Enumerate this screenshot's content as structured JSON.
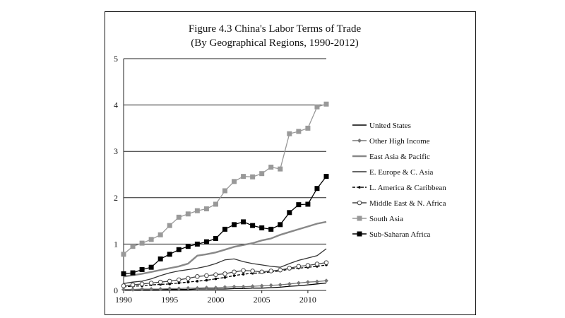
{
  "chart_data": {
    "type": "line",
    "title": "Figure 4.3 China's Labor Terms of Trade",
    "subtitle": "(By Geographical Regions, 1990-2012)",
    "xlabel": "",
    "ylabel": "",
    "xlim": [
      1990,
      2012
    ],
    "ylim": [
      0,
      5
    ],
    "x_ticks": [
      1990,
      1995,
      2000,
      2005,
      2010
    ],
    "y_ticks": [
      0,
      1,
      2,
      3,
      4,
      5
    ],
    "grid": "horizontal",
    "legend_position": "right",
    "x": [
      1990,
      1991,
      1992,
      1993,
      1994,
      1995,
      1996,
      1997,
      1998,
      1999,
      2000,
      2001,
      2002,
      2003,
      2004,
      2005,
      2006,
      2007,
      2008,
      2009,
      2010,
      2011,
      2012
    ],
    "series": [
      {
        "name": "United States",
        "color": "#000000",
        "marker": "none",
        "values": [
          0.01,
          0.01,
          0.01,
          0.01,
          0.02,
          0.02,
          0.02,
          0.02,
          0.03,
          0.03,
          0.03,
          0.03,
          0.04,
          0.04,
          0.05,
          0.05,
          0.06,
          0.07,
          0.09,
          0.1,
          0.12,
          0.14,
          0.16
        ]
      },
      {
        "name": "Other High Income",
        "color": "#777777",
        "marker": "diamond",
        "values": [
          0.02,
          0.02,
          0.03,
          0.03,
          0.03,
          0.04,
          0.04,
          0.05,
          0.05,
          0.06,
          0.06,
          0.07,
          0.08,
          0.08,
          0.09,
          0.1,
          0.11,
          0.12,
          0.14,
          0.16,
          0.18,
          0.19,
          0.21
        ]
      },
      {
        "name": "East Asia & Pacific",
        "color": "#888888",
        "marker": "none",
        "values": [
          0.3,
          0.33,
          0.36,
          0.4,
          0.44,
          0.48,
          0.52,
          0.58,
          0.75,
          0.78,
          0.82,
          0.88,
          0.94,
          0.98,
          1.02,
          1.08,
          1.12,
          1.2,
          1.26,
          1.32,
          1.38,
          1.44,
          1.48
        ]
      },
      {
        "name": "E. Europe & C. Asia",
        "color": "#333333",
        "marker": "none",
        "values": [
          0.15,
          0.18,
          0.2,
          0.25,
          0.32,
          0.38,
          0.42,
          0.45,
          0.48,
          0.52,
          0.58,
          0.66,
          0.68,
          0.62,
          0.58,
          0.55,
          0.52,
          0.5,
          0.58,
          0.65,
          0.7,
          0.75,
          0.9
        ]
      },
      {
        "name": "L. America & Caribbean",
        "color": "#000000",
        "marker": "dot",
        "dash": "4,2",
        "values": [
          0.08,
          0.09,
          0.1,
          0.12,
          0.13,
          0.14,
          0.16,
          0.18,
          0.2,
          0.22,
          0.25,
          0.28,
          0.32,
          0.35,
          0.37,
          0.38,
          0.4,
          0.42,
          0.46,
          0.48,
          0.5,
          0.52,
          0.55
        ]
      },
      {
        "name": "Middle East & N. Africa",
        "color": "#444444",
        "marker": "circle",
        "values": [
          0.1,
          0.12,
          0.14,
          0.16,
          0.18,
          0.2,
          0.23,
          0.26,
          0.3,
          0.32,
          0.34,
          0.36,
          0.4,
          0.43,
          0.42,
          0.4,
          0.42,
          0.44,
          0.48,
          0.52,
          0.54,
          0.57,
          0.6
        ]
      },
      {
        "name": "South Asia",
        "color": "#999999",
        "marker": "square",
        "values": [
          0.78,
          0.95,
          1.02,
          1.1,
          1.2,
          1.4,
          1.58,
          1.65,
          1.72,
          1.76,
          1.86,
          2.15,
          2.35,
          2.46,
          2.45,
          2.52,
          2.66,
          2.62,
          3.38,
          3.43,
          3.5,
          3.96,
          4.02
        ]
      },
      {
        "name": "Sub-Saharan Africa",
        "color": "#000000",
        "marker": "square",
        "values": [
          0.36,
          0.38,
          0.45,
          0.5,
          0.68,
          0.78,
          0.88,
          0.95,
          1.0,
          1.05,
          1.12,
          1.32,
          1.42,
          1.48,
          1.4,
          1.35,
          1.32,
          1.42,
          1.68,
          1.85,
          1.86,
          2.2,
          2.46
        ]
      }
    ]
  }
}
